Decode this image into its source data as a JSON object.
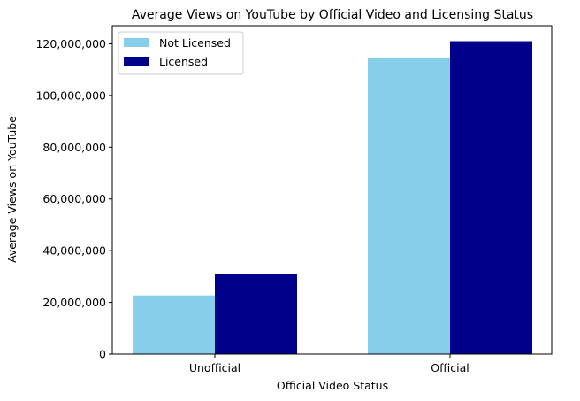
{
  "chart_data": {
    "type": "bar",
    "title": "Average Views on YouTube by Official Video and Licensing Status",
    "xlabel": "Official Video Status",
    "ylabel": "Average Views on YouTube",
    "categories": [
      "Unofficial",
      "Official"
    ],
    "series": [
      {
        "name": "Not Licensed",
        "color": "#87CEEB",
        "values": [
          22700000,
          114700000
        ]
      },
      {
        "name": "Licensed",
        "color": "#00008B",
        "values": [
          30900000,
          121000000
        ]
      }
    ],
    "ylim": [
      0,
      127000000
    ],
    "yticks": [
      0,
      20000000,
      40000000,
      60000000,
      80000000,
      100000000,
      120000000
    ],
    "ytick_labels": [
      "0",
      "20,000,000",
      "40,000,000",
      "60,000,000",
      "80,000,000",
      "100,000,000",
      "120,000,000"
    ],
    "grid": false,
    "legend_position": "top-left"
  }
}
